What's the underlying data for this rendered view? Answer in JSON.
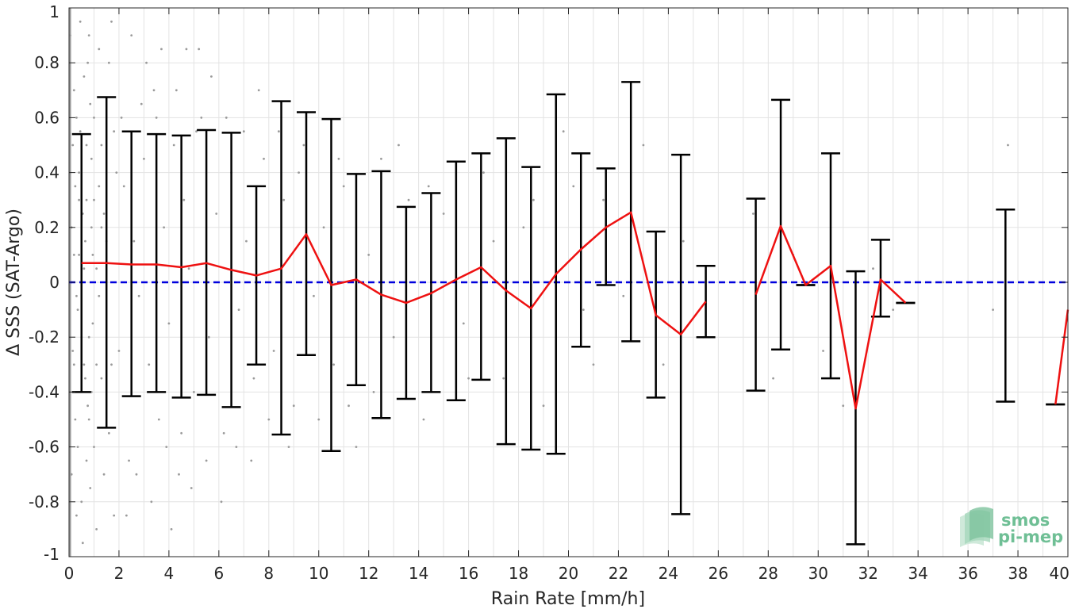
{
  "chart_data": {
    "type": "line",
    "xlabel": "Rain Rate [mm/h]",
    "ylabel": "Δ SSS (SAT-Argo)",
    "xlim": [
      0,
      40
    ],
    "ylim": [
      -1,
      1
    ],
    "x_ticks": [
      0,
      2,
      4,
      6,
      8,
      10,
      12,
      14,
      16,
      18,
      20,
      22,
      24,
      26,
      28,
      30,
      32,
      34,
      36,
      38,
      40
    ],
    "y_ticks": [
      -1,
      -0.8,
      -0.6,
      -0.4,
      -0.2,
      0,
      0.2,
      0.4,
      0.6,
      0.8,
      1
    ],
    "x_tick_labels": [
      "0",
      "2",
      "4",
      "6",
      "8",
      "10",
      "12",
      "14",
      "16",
      "18",
      "20",
      "22",
      "24",
      "26",
      "28",
      "30",
      "32",
      "34",
      "36",
      "38",
      "40"
    ],
    "y_tick_labels": [
      "-1",
      "-0.8",
      "-0.6",
      "-0.4",
      "-0.2",
      "0",
      "0.2",
      "0.4",
      "0.6",
      "0.8",
      "1"
    ],
    "grid": true,
    "reference_line": {
      "y": 0,
      "style": "dashed",
      "color": "#0000dd"
    },
    "series": [
      {
        "type": "line",
        "color": "#ee1111",
        "segments": [
          [
            [
              0.5,
              0.07
            ],
            [
              1.5,
              0.07
            ],
            [
              2.5,
              0.065
            ],
            [
              3.5,
              0.065
            ],
            [
              4.5,
              0.055
            ],
            [
              5.5,
              0.07
            ],
            [
              6.5,
              0.045
            ],
            [
              7.5,
              0.025
            ],
            [
              8.5,
              0.05
            ],
            [
              9.5,
              0.175
            ],
            [
              10.5,
              -0.01
            ],
            [
              11.5,
              0.01
            ],
            [
              12.5,
              -0.045
            ],
            [
              13.5,
              -0.075
            ],
            [
              14.5,
              -0.04
            ],
            [
              15.5,
              0.01
            ],
            [
              16.5,
              0.055
            ],
            [
              17.5,
              -0.03
            ],
            [
              18.5,
              -0.095
            ],
            [
              19.5,
              0.03
            ],
            [
              20.5,
              0.12
            ],
            [
              21.5,
              0.2
            ],
            [
              22.5,
              0.255
            ],
            [
              23.5,
              -0.12
            ],
            [
              24.5,
              -0.19
            ],
            [
              25.5,
              -0.07
            ]
          ],
          [
            [
              27.5,
              -0.045
            ],
            [
              28.5,
              0.205
            ],
            [
              29.5,
              -0.01
            ],
            [
              30.5,
              0.06
            ],
            [
              31.5,
              -0.46
            ],
            [
              32.5,
              0.01
            ],
            [
              33.5,
              -0.075
            ]
          ],
          [
            [
              39.5,
              -0.445
            ],
            [
              40,
              -0.1
            ]
          ]
        ]
      },
      {
        "type": "errorbar",
        "color": "#000000",
        "bars": [
          [
            0.5,
            -0.4,
            0.54
          ],
          [
            1.5,
            -0.53,
            0.675
          ],
          [
            2.5,
            -0.415,
            0.55
          ],
          [
            3.5,
            -0.4,
            0.54
          ],
          [
            4.5,
            -0.42,
            0.535
          ],
          [
            5.5,
            -0.41,
            0.555
          ],
          [
            6.5,
            -0.455,
            0.545
          ],
          [
            7.5,
            -0.3,
            0.35
          ],
          [
            8.5,
            -0.555,
            0.66
          ],
          [
            9.5,
            -0.265,
            0.62
          ],
          [
            10.5,
            -0.615,
            0.595
          ],
          [
            11.5,
            -0.375,
            0.395
          ],
          [
            12.5,
            -0.495,
            0.405
          ],
          [
            13.5,
            -0.425,
            0.275
          ],
          [
            14.5,
            -0.4,
            0.325
          ],
          [
            15.5,
            -0.43,
            0.44
          ],
          [
            16.5,
            -0.355,
            0.47
          ],
          [
            17.5,
            -0.59,
            0.525
          ],
          [
            18.5,
            -0.61,
            0.42
          ],
          [
            19.5,
            -0.625,
            0.685
          ],
          [
            20.5,
            -0.235,
            0.47
          ],
          [
            21.5,
            -0.01,
            0.415
          ],
          [
            22.5,
            -0.215,
            0.73
          ],
          [
            23.5,
            -0.42,
            0.185
          ],
          [
            24.5,
            -0.845,
            0.465
          ],
          [
            25.5,
            -0.2,
            0.06
          ],
          [
            27.5,
            -0.395,
            0.305
          ],
          [
            28.5,
            -0.245,
            0.665
          ],
          [
            29.5,
            -0.01,
            -0.01
          ],
          [
            30.5,
            -0.35,
            0.47
          ],
          [
            31.5,
            -0.955,
            0.04
          ],
          [
            32.5,
            -0.125,
            0.155
          ],
          [
            33.5,
            -0.075,
            -0.075
          ],
          [
            37.5,
            -0.435,
            0.265
          ],
          [
            39.5,
            -0.445,
            -0.445
          ]
        ]
      },
      {
        "type": "scatter",
        "color": "#9a9a9a",
        "points": [
          [
            0.05,
            0.9
          ],
          [
            0.1,
            -0.7
          ],
          [
            0.15,
            0.5
          ],
          [
            0.2,
            -0.3
          ],
          [
            0.1,
            0.2
          ],
          [
            0.3,
            0.6
          ],
          [
            0.25,
            -0.5
          ],
          [
            0.4,
            0.1
          ],
          [
            0.35,
            -0.1
          ],
          [
            0.6,
            0.75
          ],
          [
            0.5,
            -0.8
          ],
          [
            0.7,
            0.3
          ],
          [
            0.8,
            -0.2
          ],
          [
            0.9,
            0.45
          ],
          [
            1.0,
            -0.6
          ],
          [
            1.1,
            0.05
          ],
          [
            1.2,
            0.85
          ],
          [
            1.3,
            -0.35
          ],
          [
            0.45,
            0.95
          ],
          [
            0.55,
            -0.95
          ],
          [
            0.65,
            0.15
          ],
          [
            0.75,
            -0.45
          ],
          [
            0.85,
            0.65
          ],
          [
            0.95,
            -0.15
          ],
          [
            1.4,
            0.25
          ],
          [
            1.6,
            -0.55
          ],
          [
            1.8,
            0.55
          ],
          [
            2.0,
            -0.25
          ],
          [
            2.2,
            0.35
          ],
          [
            2.4,
            -0.65
          ],
          [
            2.6,
            0.15
          ],
          [
            2.8,
            -0.05
          ],
          [
            3.0,
            0.45
          ],
          [
            3.2,
            -0.3
          ],
          [
            3.4,
            0.7
          ],
          [
            3.6,
            -0.5
          ],
          [
            3.8,
            0.2
          ],
          [
            4.0,
            -0.15
          ],
          [
            4.2,
            0.5
          ],
          [
            4.4,
            -0.7
          ],
          [
            4.6,
            0.3
          ],
          [
            4.8,
            0.05
          ],
          [
            5.0,
            -0.4
          ],
          [
            5.3,
            0.6
          ],
          [
            5.6,
            -0.2
          ],
          [
            5.9,
            0.25
          ],
          [
            6.2,
            -0.55
          ],
          [
            6.5,
            0.4
          ],
          [
            6.8,
            -0.1
          ],
          [
            7.1,
            0.15
          ],
          [
            7.4,
            -0.35
          ],
          [
            7.8,
            0.45
          ],
          [
            8.2,
            -0.25
          ],
          [
            8.6,
            0.3
          ],
          [
            9.0,
            -0.45
          ],
          [
            9.4,
            0.5
          ],
          [
            9.8,
            -0.05
          ],
          [
            10.2,
            0.2
          ],
          [
            10.6,
            -0.3
          ],
          [
            11.0,
            0.35
          ],
          [
            11.5,
            -0.6
          ],
          [
            12.0,
            0.1
          ],
          [
            12.5,
            0.45
          ],
          [
            13.0,
            -0.2
          ],
          [
            13.6,
            0.3
          ],
          [
            14.2,
            -0.5
          ],
          [
            15.0,
            0.25
          ],
          [
            15.8,
            -0.15
          ],
          [
            16.6,
            0.4
          ],
          [
            17.4,
            -0.35
          ],
          [
            18.2,
            0.2
          ],
          [
            19.0,
            -0.45
          ],
          [
            19.8,
            0.55
          ],
          [
            20.6,
            -0.1
          ],
          [
            21.4,
            0.3
          ],
          [
            22.2,
            -0.05
          ],
          [
            23.0,
            0.5
          ],
          [
            23.8,
            -0.3
          ],
          [
            24.6,
            0.15
          ],
          [
            25.4,
            -0.2
          ],
          [
            27.4,
            0.25
          ],
          [
            28.2,
            -0.35
          ],
          [
            29.0,
            0.1
          ],
          [
            30.2,
            -0.25
          ],
          [
            31.0,
            -0.45
          ],
          [
            32.2,
            0.05
          ],
          [
            33.0,
            -0.1
          ],
          [
            35.0,
            0.0
          ],
          [
            37.0,
            -0.1
          ],
          [
            37.6,
            0.5
          ],
          [
            1.7,
            0.95
          ],
          [
            2.3,
            -0.85
          ],
          [
            3.1,
            0.8
          ],
          [
            4.1,
            -0.9
          ],
          [
            5.2,
            0.85
          ],
          [
            6.1,
            -0.8
          ],
          [
            0.2,
            0.7
          ],
          [
            0.3,
            -0.85
          ],
          [
            0.4,
            0.4
          ],
          [
            0.5,
            -0.2
          ],
          [
            0.6,
            0.05
          ],
          [
            0.7,
            -0.65
          ],
          [
            0.8,
            0.9
          ],
          [
            0.9,
            -0.4
          ],
          [
            1.0,
            0.6
          ],
          [
            1.1,
            -0.9
          ],
          [
            1.2,
            0.35
          ],
          [
            1.3,
            0.5
          ],
          [
            1.4,
            -0.7
          ],
          [
            1.5,
            0.15
          ],
          [
            1.6,
            0.8
          ],
          [
            1.7,
            -0.3
          ],
          [
            1.8,
            -0.85
          ],
          [
            1.9,
            0.4
          ],
          [
            2.1,
            0.6
          ],
          [
            2.5,
            0.9
          ],
          [
            2.7,
            -0.7
          ],
          [
            2.9,
            0.65
          ],
          [
            3.3,
            -0.8
          ],
          [
            3.5,
            0.6
          ],
          [
            3.7,
            0.85
          ],
          [
            3.9,
            -0.6
          ],
          [
            4.3,
            0.7
          ],
          [
            4.5,
            -0.55
          ],
          [
            4.7,
            0.85
          ],
          [
            4.9,
            -0.75
          ],
          [
            5.1,
            0.55
          ],
          [
            5.5,
            -0.65
          ],
          [
            5.7,
            0.75
          ],
          [
            6.3,
            0.6
          ],
          [
            6.7,
            -0.6
          ],
          [
            7.0,
            0.55
          ],
          [
            7.3,
            -0.65
          ],
          [
            7.6,
            0.7
          ],
          [
            8.0,
            -0.5
          ],
          [
            8.4,
            0.55
          ],
          [
            8.8,
            -0.6
          ],
          [
            9.2,
            0.4
          ],
          [
            10.0,
            -0.5
          ],
          [
            10.8,
            0.45
          ],
          [
            11.2,
            -0.45
          ],
          [
            12.2,
            -0.4
          ],
          [
            13.2,
            0.5
          ],
          [
            14.4,
            0.35
          ],
          [
            16.0,
            -0.35
          ],
          [
            17.0,
            0.15
          ],
          [
            18.6,
            0.3
          ],
          [
            20.2,
            0.35
          ],
          [
            21.0,
            -0.3
          ],
          [
            0.15,
            -0.25
          ],
          [
            0.25,
            0.35
          ],
          [
            0.35,
            -0.6
          ],
          [
            0.45,
            0.55
          ],
          [
            0.55,
            0.25
          ],
          [
            0.65,
            -0.35
          ],
          [
            0.75,
            0.8
          ],
          [
            0.85,
            -0.75
          ],
          [
            0.95,
            0.1
          ],
          [
            0.05,
            0.4
          ],
          [
            0.05,
            -0.4
          ],
          [
            0.1,
            0.0
          ],
          [
            0.2,
            0.1
          ],
          [
            0.3,
            -0.05
          ],
          [
            0.4,
            0.3
          ],
          [
            0.5,
            0.0
          ],
          [
            0.6,
            -0.3
          ],
          [
            0.7,
            0.5
          ],
          [
            0.8,
            -0.5
          ],
          [
            0.9,
            0.2
          ],
          [
            1.0,
            0.3
          ],
          [
            1.1,
            -0.3
          ],
          [
            1.2,
            -0.05
          ],
          [
            1.3,
            0.2
          ]
        ]
      }
    ]
  },
  "logo": {
    "line1": "smos",
    "line2": "pi-mep"
  }
}
